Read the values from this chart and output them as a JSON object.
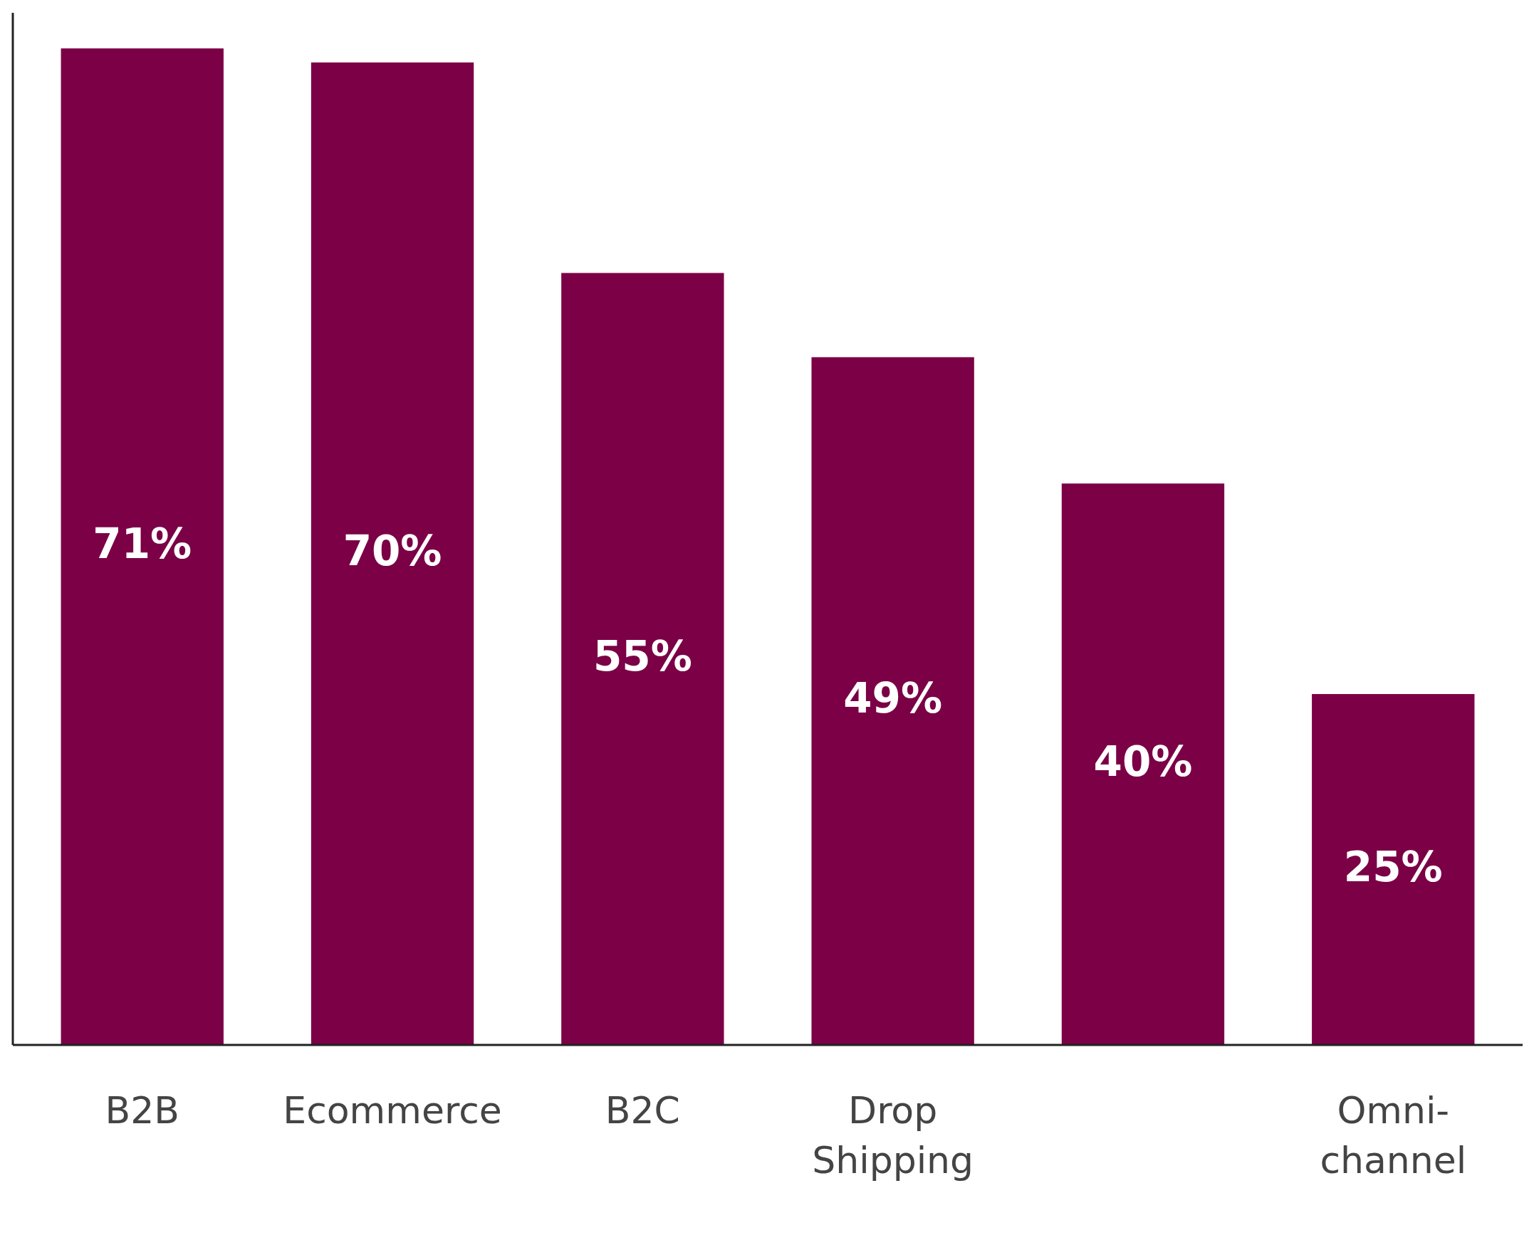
{
  "chart_data": {
    "type": "bar",
    "categories": [
      "B2B",
      "Ecommerce",
      "B2C",
      "Drop Shipping",
      null,
      "Omni-channel"
    ],
    "values": [
      71,
      70,
      55,
      49,
      40,
      25
    ],
    "value_labels": [
      "71%",
      "70%",
      "55%",
      "49%",
      "40%",
      "25%"
    ],
    "color": "#7b0046"
  }
}
